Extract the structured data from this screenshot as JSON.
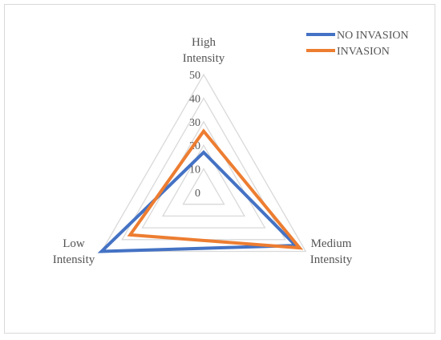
{
  "chart_data": {
    "type": "radar",
    "categories": [
      "High Intensity",
      "Medium Intensity",
      "Low Intensity"
    ],
    "category_lines": [
      [
        "High",
        "Intensity"
      ],
      [
        "Medium",
        "Intensity"
      ],
      [
        "Low",
        "Intensity"
      ]
    ],
    "radial_ticks": [
      "0",
      "10",
      "20",
      "30",
      "40",
      "50"
    ],
    "rlim": [
      0,
      50
    ],
    "grid": true,
    "legend_position": "top-right",
    "series": [
      {
        "name": "NO INVASION",
        "color": "#4472c4",
        "values": [
          17,
          45,
          50
        ]
      },
      {
        "name": "INVASION",
        "color": "#ed7d31",
        "values": [
          26,
          47,
          36
        ]
      }
    ]
  }
}
